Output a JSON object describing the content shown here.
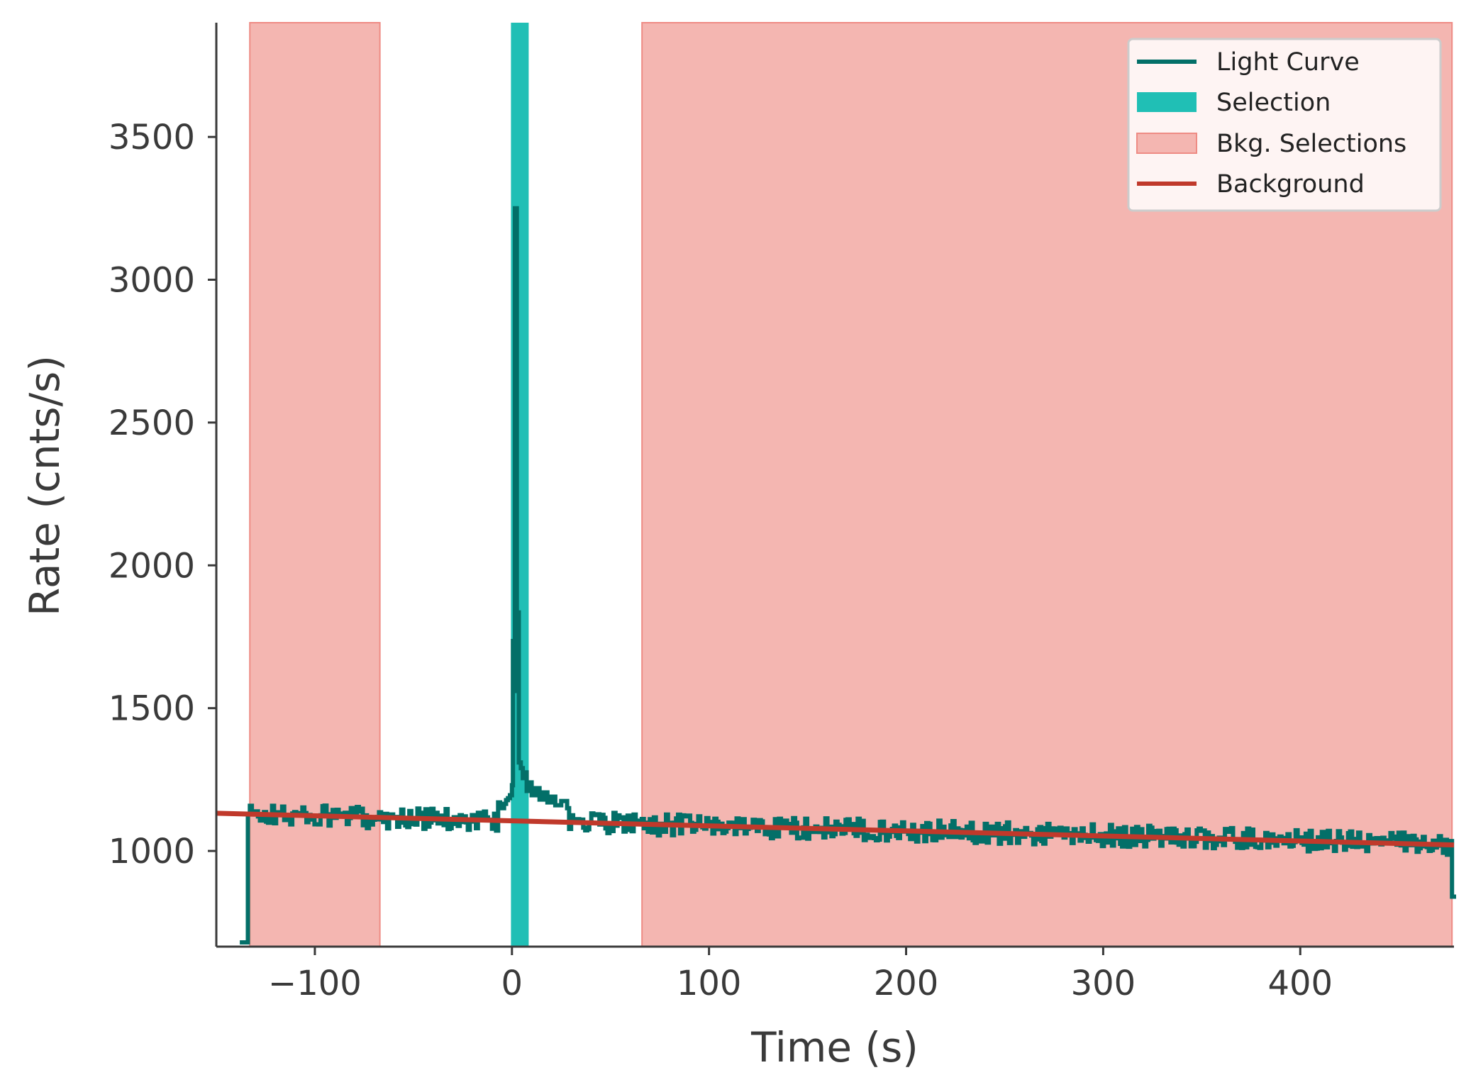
{
  "chart_data": {
    "type": "line",
    "xlabel": "Time (s)",
    "ylabel": "Rate (cnts/s)",
    "xlim": [
      -150,
      478
    ],
    "ylim": [
      665,
      3900
    ],
    "xticks": [
      -100,
      0,
      100,
      200,
      300,
      400
    ],
    "xtick_labels": [
      "−100",
      "0",
      "100",
      "200",
      "300",
      "400"
    ],
    "yticks": [
      1000,
      1500,
      2000,
      2500,
      3000,
      3500
    ],
    "ytick_labels": [
      "1000",
      "1500",
      "2000",
      "2500",
      "3000",
      "3500"
    ],
    "grid": false,
    "legend_position": "top-right",
    "colors": {
      "light_curve": "#036f68",
      "selection": "#20bfb5",
      "bkg_fill": "#f4b6b1",
      "bkg_edge": "#ee8b84",
      "background": "#c0392b",
      "axis": "#3a3a3a"
    },
    "series": [
      {
        "name": "Light Curve",
        "kind": "step",
        "start": -137,
        "initial_value": 680,
        "bin_width": 1.024,
        "trend": {
          "t0": -137,
          "v0": 1128,
          "t1": 478,
          "v1": 1024
        },
        "noise_amplitude": 38,
        "peaks": [
          {
            "t": -7.0,
            "value": 1170
          },
          {
            "t": -6.0,
            "value": 1158
          },
          {
            "t": -5.0,
            "value": 1150
          },
          {
            "t": -4.0,
            "value": 1165
          },
          {
            "t": -3.0,
            "value": 1178
          },
          {
            "t": -2.0,
            "value": 1185
          },
          {
            "t": -1.0,
            "value": 1195
          },
          {
            "t": 0.0,
            "value": 1230
          },
          {
            "t": 0.5,
            "value": 1735
          },
          {
            "t": 1.0,
            "value": 1560
          },
          {
            "t": 1.5,
            "value": 3250
          },
          {
            "t": 2.5,
            "value": 1835
          },
          {
            "t": 3.5,
            "value": 1310
          },
          {
            "t": 4.5,
            "value": 1290
          },
          {
            "t": 5.5,
            "value": 1255
          },
          {
            "t": 6.5,
            "value": 1275
          },
          {
            "t": 7.5,
            "value": 1210
          },
          {
            "t": 8.5,
            "value": 1240
          },
          {
            "t": 10.0,
            "value": 1195
          },
          {
            "t": 12.0,
            "value": 1220
          },
          {
            "t": 14.0,
            "value": 1180
          },
          {
            "t": 16.0,
            "value": 1205
          },
          {
            "t": 18.0,
            "value": 1170
          },
          {
            "t": 20.0,
            "value": 1190
          },
          {
            "t": 22.0,
            "value": 1160
          },
          {
            "t": 25.0,
            "value": 1175
          },
          {
            "t": 28.0,
            "value": 1150
          }
        ],
        "end_value": 840
      },
      {
        "name": "Selection",
        "kind": "span",
        "x_start": -0.5,
        "x_end": 8.5
      },
      {
        "name": "Bkg. Selections",
        "kind": "spans",
        "ranges": [
          [
            -133,
            -67
          ],
          [
            66,
            477
          ]
        ]
      },
      {
        "name": "Background",
        "kind": "line",
        "x": [
          -150,
          478
        ],
        "y": [
          1132,
          1021
        ]
      }
    ],
    "legend": [
      "Light Curve",
      "Selection",
      "Bkg. Selections",
      "Background"
    ]
  }
}
